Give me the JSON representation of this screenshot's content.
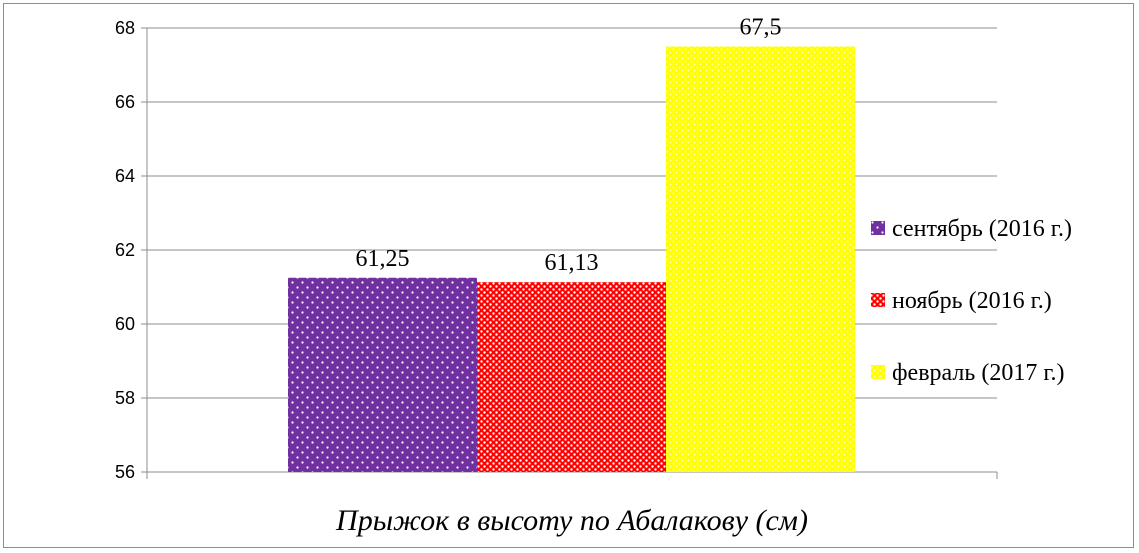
{
  "chart_data": {
    "type": "bar",
    "title": "",
    "xlabel": "Прыжок в высоту по Абалакову (см)",
    "ylabel": "",
    "ylim": [
      56,
      68
    ],
    "yticks": [
      56,
      58,
      60,
      62,
      64,
      66,
      68
    ],
    "categories": [
      "Прыжок в высоту по Абалакову (см)"
    ],
    "series": [
      {
        "name": "сентябрь (2016 г.)",
        "values": [
          61.25
        ],
        "label": "61,25",
        "color": "#7030a0",
        "pattern": "dots"
      },
      {
        "name": "ноябрь (2016 г.)",
        "values": [
          61.13
        ],
        "label": "61,13",
        "color": "#ff0000",
        "pattern": "dense-dots"
      },
      {
        "name": "февраль (2017 г.)",
        "values": [
          67.5
        ],
        "label": "67,5",
        "color": "#ffff00",
        "pattern": "dense-dots"
      }
    ],
    "grid": true,
    "legend": "right"
  }
}
